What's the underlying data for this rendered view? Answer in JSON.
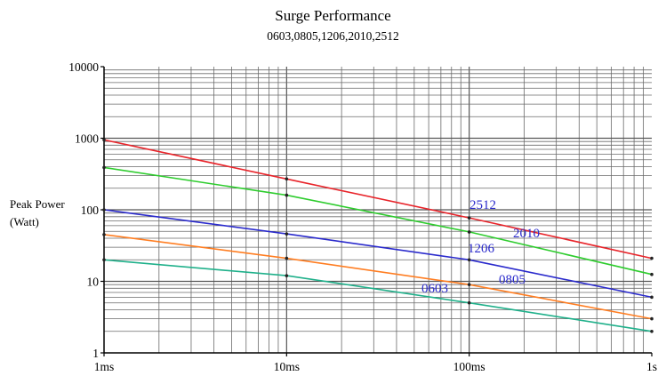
{
  "chart_data": {
    "type": "line",
    "title": "Surge Performance",
    "subtitle": "0603,0805,1206,2010,2512",
    "ylabel_line1": "Peak Power",
    "ylabel_line2": "(Watt)",
    "xlabel": "",
    "x_scale": "log",
    "y_scale": "log",
    "x_unit": "s",
    "xlim": [
      0.001,
      1
    ],
    "ylim": [
      1,
      10000
    ],
    "x_ticks": [
      {
        "value": 0.001,
        "label": "1ms"
      },
      {
        "value": 0.01,
        "label": "10ms"
      },
      {
        "value": 0.1,
        "label": "100ms"
      },
      {
        "value": 1,
        "label": "1s"
      }
    ],
    "y_ticks": [
      {
        "value": 1,
        "label": "1"
      },
      {
        "value": 10,
        "label": "10"
      },
      {
        "value": 100,
        "label": "100"
      },
      {
        "value": 1000,
        "label": "1000"
      },
      {
        "value": 10000,
        "label": "10000"
      }
    ],
    "grid": true,
    "legend": "none",
    "series": [
      {
        "name": "2512",
        "color": "#e8242a",
        "x": [
          0.001,
          0.01,
          0.1,
          1
        ],
        "y": [
          950,
          270,
          77,
          21
        ],
        "label_color": "#2a2acc"
      },
      {
        "name": "2010",
        "color": "#2ecc2e",
        "x": [
          0.001,
          0.01,
          0.1,
          1
        ],
        "y": [
          390,
          160,
          49,
          12.5
        ],
        "label_color": "#2a2acc"
      },
      {
        "name": "1206",
        "color": "#2a2acc",
        "x": [
          0.001,
          0.01,
          0.1,
          1
        ],
        "y": [
          100,
          46,
          20,
          6
        ],
        "label_color": "#2a2acc"
      },
      {
        "name": "0805",
        "color": "#ff7d21",
        "x": [
          0.001,
          0.01,
          0.1,
          1
        ],
        "y": [
          45,
          21,
          9,
          3
        ],
        "label_color": "#2a2acc"
      },
      {
        "name": "0603",
        "color": "#1fb08a",
        "x": [
          0.001,
          0.01,
          0.1,
          1
        ],
        "y": [
          20,
          12,
          5,
          2
        ],
        "label_color": "#2a2acc"
      }
    ]
  }
}
